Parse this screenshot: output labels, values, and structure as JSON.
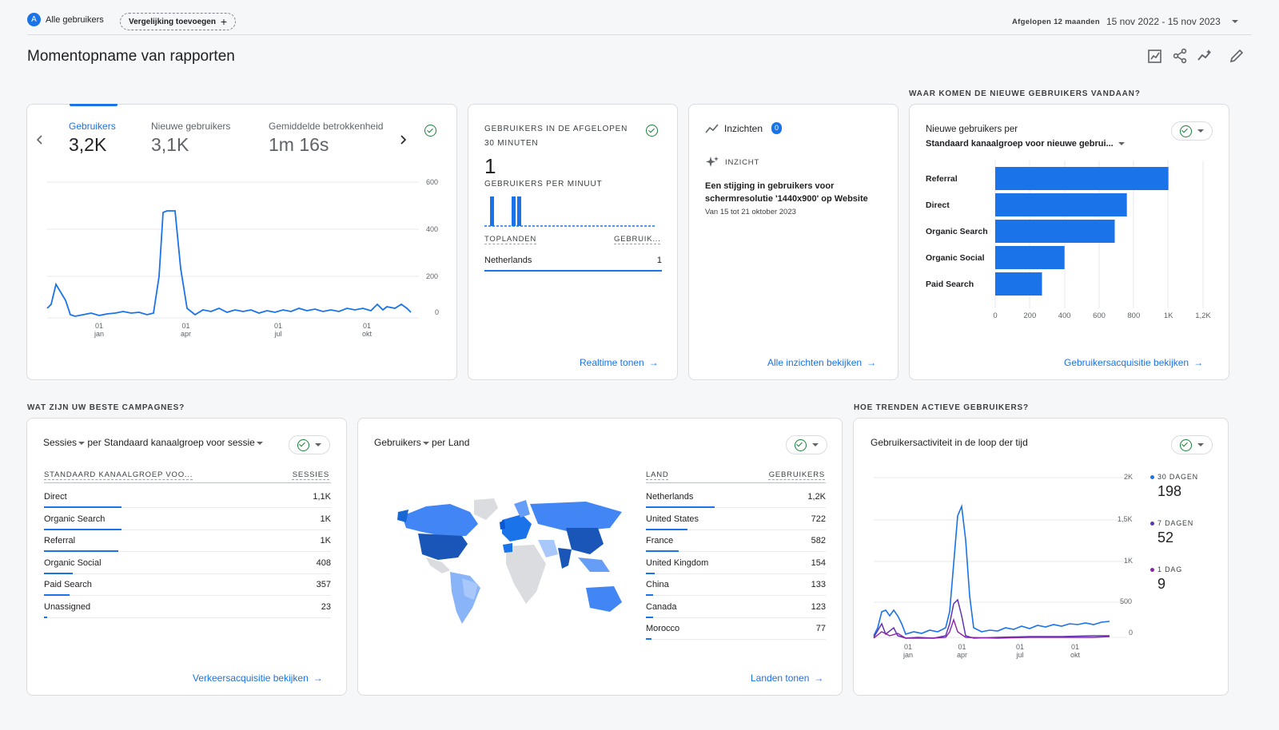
{
  "header": {
    "avatar_letter": "A",
    "segment_label": "Alle gebruikers",
    "compare_label": "Vergelijking toevoegen",
    "period_label": "Afgelopen 12 maanden",
    "date_range": "15 nov 2022 - 15 nov 2023",
    "page_title": "Momentopname van rapporten"
  },
  "sections": {
    "new_users_source": "WAAR KOMEN DE NIEUWE GEBRUIKERS VANDAAN?",
    "campaigns": "WAT ZIJN UW BESTE CAMPAGNES?",
    "trends": "HOE TRENDEN ACTIEVE GEBRUIKERS?"
  },
  "metrics_card": {
    "metrics": [
      {
        "label": "Gebruikers",
        "value": "3,2K"
      },
      {
        "label": "Nieuwe gebruikers",
        "value": "3,1K"
      },
      {
        "label": "Gemiddelde betrokkenheid",
        "value": "1m 16s"
      }
    ],
    "y_ticks": [
      "600",
      "400",
      "200",
      "0"
    ],
    "x_ticks": [
      {
        "day": "01",
        "month": "jan"
      },
      {
        "day": "01",
        "month": "apr"
      },
      {
        "day": "01",
        "month": "jul"
      },
      {
        "day": "01",
        "month": "okt"
      }
    ]
  },
  "realtime_card": {
    "title": "GEBRUIKERS IN DE AFGELOPEN 30 MINUTEN",
    "value": "1",
    "per_minute_label": "GEBRUIKERS PER MINUUT",
    "col_country": "TOPLANDEN",
    "col_users": "GEBRUIK...",
    "rows": [
      {
        "country": "Netherlands",
        "users": "1"
      }
    ],
    "minute_bars": [
      1,
      0,
      0,
      0,
      1,
      1
    ],
    "link": "Realtime tonen"
  },
  "insights_card": {
    "title": "Inzichten",
    "badge": "0",
    "tag": "INZICHT",
    "text_line1": "Een stijging in gebruikers voor",
    "text_line2": "schermresolutie '1440x900' op Website",
    "date": "Van 15 tot 21 oktober 2023",
    "link": "Alle inzichten bekijken"
  },
  "acquisition_card": {
    "title_line1": "Nieuwe gebruikers per",
    "title_line2": "Standaard kanaalgroep voor nieuwe gebrui...",
    "x_ticks": [
      "0",
      "200",
      "400",
      "600",
      "800",
      "1K",
      "1,2K"
    ],
    "link": "Gebruikersacquisitie bekijken"
  },
  "campaigns_card": {
    "title_metric": "Sessies",
    "title_dim": "per Standaard kanaalgroep voor sessie",
    "col_dim": "STANDAARD KANAALGROEP VOO...",
    "col_metric": "SESSIES",
    "rows": [
      {
        "name": "Direct",
        "value": "1,1K",
        "pct": 0.27
      },
      {
        "name": "Organic Search",
        "value": "1K",
        "pct": 0.27
      },
      {
        "name": "Referral",
        "value": "1K",
        "pct": 0.26
      },
      {
        "name": "Organic Social",
        "value": "408",
        "pct": 0.1
      },
      {
        "name": "Paid Search",
        "value": "357",
        "pct": 0.09
      },
      {
        "name": "Unassigned",
        "value": "23",
        "pct": 0.01
      }
    ],
    "link": "Verkeersacquisitie bekijken"
  },
  "country_card": {
    "title_metric": "Gebruikers",
    "title_dim": "per Land",
    "col_country": "LAND",
    "col_users": "GEBRUIKERS",
    "rows": [
      {
        "name": "Netherlands",
        "value": "1,2K",
        "pct": 0.38
      },
      {
        "name": "United States",
        "value": "722",
        "pct": 0.23
      },
      {
        "name": "France",
        "value": "582",
        "pct": 0.18
      },
      {
        "name": "United Kingdom",
        "value": "154",
        "pct": 0.05
      },
      {
        "name": "China",
        "value": "133",
        "pct": 0.04
      },
      {
        "name": "Canada",
        "value": "123",
        "pct": 0.04
      },
      {
        "name": "Morocco",
        "value": "77",
        "pct": 0.03
      }
    ],
    "link": "Landen tonen"
  },
  "activity_card": {
    "title": "Gebruikersactiviteit in de loop der tijd",
    "y_ticks": [
      "2K",
      "1,5K",
      "1K",
      "500",
      "0"
    ],
    "x_ticks": [
      {
        "day": "01",
        "month": "jan"
      },
      {
        "day": "01",
        "month": "apr"
      },
      {
        "day": "01",
        "month": "jul"
      },
      {
        "day": "01",
        "month": "okt"
      }
    ],
    "legend": [
      {
        "label": "30 DAGEN",
        "value": "198",
        "color": "#1a73e8"
      },
      {
        "label": "7 DAGEN",
        "value": "52",
        "color": "#5e35b1"
      },
      {
        "label": "1 DAG",
        "value": "9",
        "color": "#8e24aa"
      }
    ]
  },
  "chart_data": [
    {
      "type": "line",
      "title": "Gebruikers",
      "ylim": [
        0,
        600
      ],
      "x": [
        "nov",
        "dec",
        "jan",
        "feb",
        "mrt",
        "apr",
        "mei",
        "jun",
        "jul",
        "aug",
        "sep",
        "okt",
        "nov"
      ],
      "series": [
        {
          "values": [
            15,
            120,
            40,
            10,
            10,
            460,
            20,
            15,
            18,
            20,
            18,
            25,
            20
          ]
        }
      ]
    },
    {
      "type": "bar",
      "title": "Nieuwe gebruikers per Standaard kanaalgroep voor nieuwe gebrui...",
      "categories": [
        "Referral",
        "Direct",
        "Organic Search",
        "Organic Social",
        "Paid Search"
      ],
      "values": [
        1000,
        760,
        690,
        400,
        270
      ],
      "xlim": [
        0,
        1200
      ]
    },
    {
      "type": "line",
      "title": "Gebruikersactiviteit in de loop der tijd",
      "ylim": [
        0,
        2000
      ],
      "x": [
        "nov",
        "dec",
        "jan",
        "feb",
        "mrt",
        "apr",
        "mei",
        "jun",
        "jul",
        "aug",
        "sep",
        "okt",
        "nov"
      ],
      "series": [
        {
          "name": "30 DAGEN",
          "values": [
            60,
            400,
            250,
            60,
            200,
            1870,
            150,
            80,
            90,
            100,
            120,
            150,
            198
          ]
        },
        {
          "name": "7 DAGEN",
          "values": [
            20,
            150,
            50,
            20,
            30,
            470,
            40,
            25,
            30,
            35,
            40,
            45,
            52
          ]
        },
        {
          "name": "1 DAG",
          "values": [
            5,
            30,
            10,
            5,
            8,
            80,
            10,
            6,
            8,
            8,
            9,
            9,
            9
          ]
        }
      ]
    }
  ]
}
